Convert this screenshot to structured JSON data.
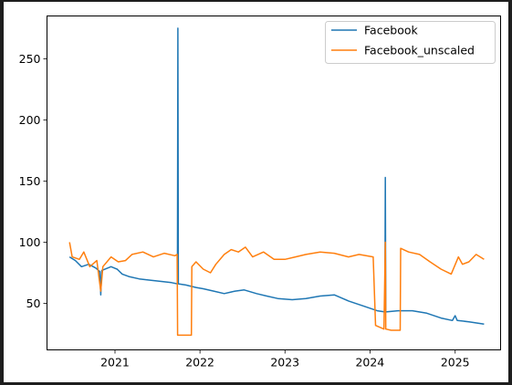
{
  "chart_data": {
    "type": "line",
    "xlim": [
      "2020-03-15",
      "2025-07-15"
    ],
    "ylim": [
      12,
      285
    ],
    "x_ticks": [
      "2021",
      "2022",
      "2023",
      "2024",
      "2025"
    ],
    "x_tick_dates": [
      "2021-01-01",
      "2022-01-01",
      "2023-01-01",
      "2024-01-01",
      "2025-01-01"
    ],
    "y_ticks": [
      50,
      100,
      150,
      200,
      250
    ],
    "grid": false,
    "legend_position": "top-right",
    "series": [
      {
        "name": "Facebook",
        "color": "#1f77b4",
        "points": [
          [
            "2020-06-20",
            88
          ],
          [
            "2020-07-15",
            85
          ],
          [
            "2020-08-10",
            80
          ],
          [
            "2020-09-10",
            82
          ],
          [
            "2020-10-10",
            79
          ],
          [
            "2020-10-28",
            76
          ],
          [
            "2020-11-01",
            57
          ],
          [
            "2020-11-05",
            77
          ],
          [
            "2020-12-15",
            80
          ],
          [
            "2021-01-10",
            78
          ],
          [
            "2021-02-01",
            74
          ],
          [
            "2021-03-01",
            72
          ],
          [
            "2021-04-15",
            70
          ],
          [
            "2021-06-01",
            69
          ],
          [
            "2021-07-15",
            68
          ],
          [
            "2021-09-01",
            67
          ],
          [
            "2021-09-26",
            66
          ],
          [
            "2021-09-28",
            275
          ],
          [
            "2021-09-30",
            66
          ],
          [
            "2021-11-01",
            65
          ],
          [
            "2021-12-15",
            63
          ],
          [
            "2022-01-15",
            62
          ],
          [
            "2022-03-01",
            60
          ],
          [
            "2022-04-15",
            58
          ],
          [
            "2022-06-01",
            60
          ],
          [
            "2022-07-10",
            61
          ],
          [
            "2022-09-01",
            58
          ],
          [
            "2022-10-15",
            56
          ],
          [
            "2022-12-01",
            54
          ],
          [
            "2023-02-01",
            53
          ],
          [
            "2023-04-01",
            54
          ],
          [
            "2023-06-01",
            56
          ],
          [
            "2023-08-01",
            57
          ],
          [
            "2023-10-01",
            52
          ],
          [
            "2023-12-01",
            48
          ],
          [
            "2024-02-01",
            44
          ],
          [
            "2024-03-05",
            43
          ],
          [
            "2024-03-07",
            153
          ],
          [
            "2024-03-09",
            43
          ],
          [
            "2024-05-01",
            44
          ],
          [
            "2024-07-01",
            44
          ],
          [
            "2024-09-01",
            42
          ],
          [
            "2024-11-01",
            38
          ],
          [
            "2024-12-20",
            36
          ],
          [
            "2025-01-01",
            40
          ],
          [
            "2025-01-10",
            36
          ],
          [
            "2025-03-01",
            35
          ],
          [
            "2025-05-05",
            33
          ]
        ]
      },
      {
        "name": "Facebook_unscaled",
        "color": "#ff7f0e",
        "points": [
          [
            "2020-06-20",
            100
          ],
          [
            "2020-07-01",
            88
          ],
          [
            "2020-08-01",
            86
          ],
          [
            "2020-08-20",
            92
          ],
          [
            "2020-09-15",
            80
          ],
          [
            "2020-10-15",
            85
          ],
          [
            "2020-11-01",
            60
          ],
          [
            "2020-11-10",
            80
          ],
          [
            "2020-12-15",
            88
          ],
          [
            "2021-01-15",
            84
          ],
          [
            "2021-02-15",
            85
          ],
          [
            "2021-03-15",
            90
          ],
          [
            "2021-05-01",
            92
          ],
          [
            "2021-06-15",
            88
          ],
          [
            "2021-08-01",
            91
          ],
          [
            "2021-09-15",
            89
          ],
          [
            "2021-09-25",
            90
          ],
          [
            "2021-09-27",
            24
          ],
          [
            "2021-11-25",
            24
          ],
          [
            "2021-11-27",
            80
          ],
          [
            "2021-12-15",
            84
          ],
          [
            "2022-01-15",
            78
          ],
          [
            "2022-02-15",
            75
          ],
          [
            "2022-03-10",
            82
          ],
          [
            "2022-04-15",
            90
          ],
          [
            "2022-05-15",
            94
          ],
          [
            "2022-06-15",
            92
          ],
          [
            "2022-07-15",
            96
          ],
          [
            "2022-08-15",
            88
          ],
          [
            "2022-10-01",
            92
          ],
          [
            "2022-11-15",
            86
          ],
          [
            "2023-01-01",
            86
          ],
          [
            "2023-02-15",
            88
          ],
          [
            "2023-04-01",
            90
          ],
          [
            "2023-06-01",
            92
          ],
          [
            "2023-08-01",
            91
          ],
          [
            "2023-10-01",
            88
          ],
          [
            "2023-11-15",
            90
          ],
          [
            "2024-01-15",
            88
          ],
          [
            "2024-01-25",
            32
          ],
          [
            "2024-03-01",
            29
          ],
          [
            "2024-03-07",
            100
          ],
          [
            "2024-03-09",
            29
          ],
          [
            "2024-04-01",
            28
          ],
          [
            "2024-05-10",
            28
          ],
          [
            "2024-05-12",
            95
          ],
          [
            "2024-06-15",
            92
          ],
          [
            "2024-08-01",
            90
          ],
          [
            "2024-09-15",
            84
          ],
          [
            "2024-11-01",
            78
          ],
          [
            "2024-12-15",
            74
          ],
          [
            "2025-01-15",
            88
          ],
          [
            "2025-02-01",
            82
          ],
          [
            "2025-03-01",
            84
          ],
          [
            "2025-04-01",
            90
          ],
          [
            "2025-05-05",
            86
          ]
        ]
      }
    ]
  }
}
